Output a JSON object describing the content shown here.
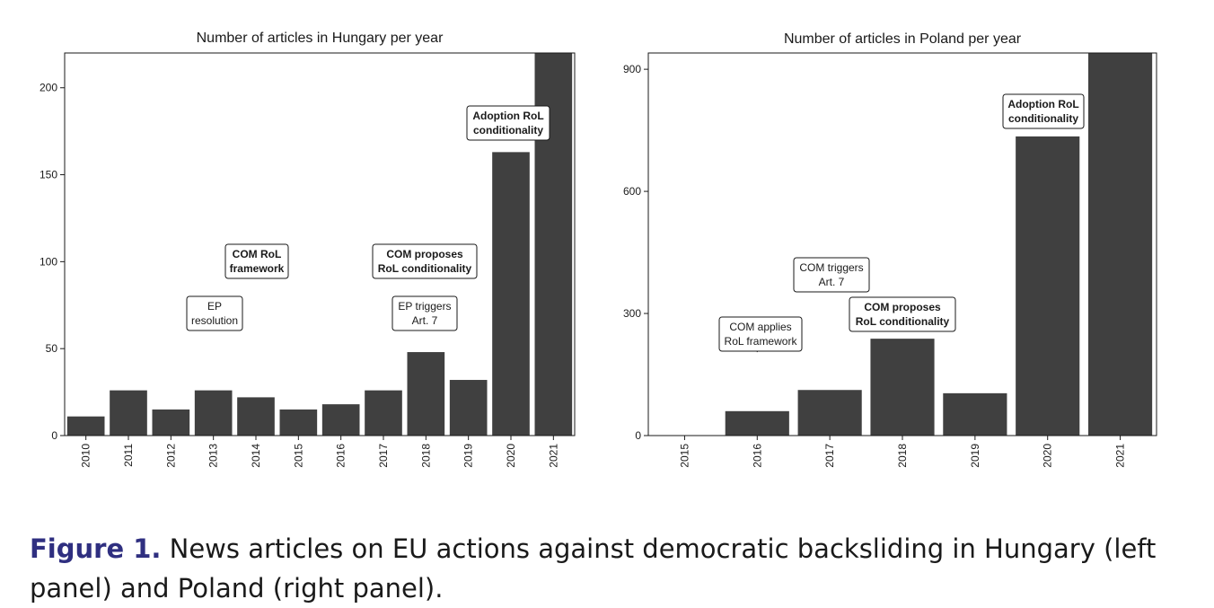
{
  "chart_data": [
    {
      "type": "bar",
      "title": "Number of articles in Hungary per year",
      "xlabel": "",
      "ylabel": "",
      "categories": [
        "2010",
        "2011",
        "2012",
        "2013",
        "2014",
        "2015",
        "2016",
        "2017",
        "2018",
        "2019",
        "2020",
        "2021"
      ],
      "values": [
        11,
        26,
        15,
        26,
        22,
        15,
        18,
        26,
        48,
        32,
        163,
        220
      ],
      "ylim": [
        0,
        220
      ],
      "yticks": [
        0,
        50,
        100,
        150,
        200
      ],
      "annotations": [
        {
          "category": "2013",
          "lines": [
            "EP",
            "resolution"
          ],
          "bold": false,
          "at_value": 80
        },
        {
          "category": "2014",
          "lines": [
            "COM RoL",
            "framework"
          ],
          "bold": true,
          "at_value": 100
        },
        {
          "category": "2018",
          "lines": [
            "EP triggers",
            "Art. 7"
          ],
          "bold": false,
          "at_value": 70
        },
        {
          "category": "2018",
          "lines": [
            "COM proposes",
            "RoL conditionality"
          ],
          "bold": true,
          "at_value": 100
        },
        {
          "category": "2020",
          "lines": [
            "Adoption RoL",
            "conditionality"
          ],
          "bold": true,
          "at_value": 181
        }
      ]
    },
    {
      "type": "bar",
      "title": "Number of articles in Poland per year",
      "xlabel": "",
      "ylabel": "",
      "categories": [
        "2015",
        "2016",
        "2017",
        "2018",
        "2019",
        "2020",
        "2021"
      ],
      "values": [
        0,
        60,
        112,
        238,
        104,
        735,
        940
      ],
      "ylim": [
        0,
        940
      ],
      "yticks": [
        0,
        300,
        600,
        900
      ],
      "annotations": [
        {
          "category": "2016",
          "lines": [
            "COM applies",
            "RoL framework"
          ],
          "bold": false,
          "at_value": 205
        },
        {
          "category": "2017",
          "lines": [
            "COM triggers",
            "Art. 7"
          ],
          "bold": false,
          "at_value": 357
        },
        {
          "category": "2018",
          "lines": [
            "COM proposes",
            "RoL conditionality"
          ],
          "bold": true,
          "at_value": 260
        },
        {
          "category": "2020",
          "lines": [
            "Adoption RoL",
            "conditionality"
          ],
          "bold": true,
          "at_value": 762
        }
      ]
    }
  ],
  "caption": {
    "label": "Figure 1.",
    "text": "News articles on EU actions against democratic backsliding in Hungary (left panel) and Poland (right panel)."
  },
  "colors": {
    "bar": "#404040",
    "axis": "#1a1a1a"
  }
}
